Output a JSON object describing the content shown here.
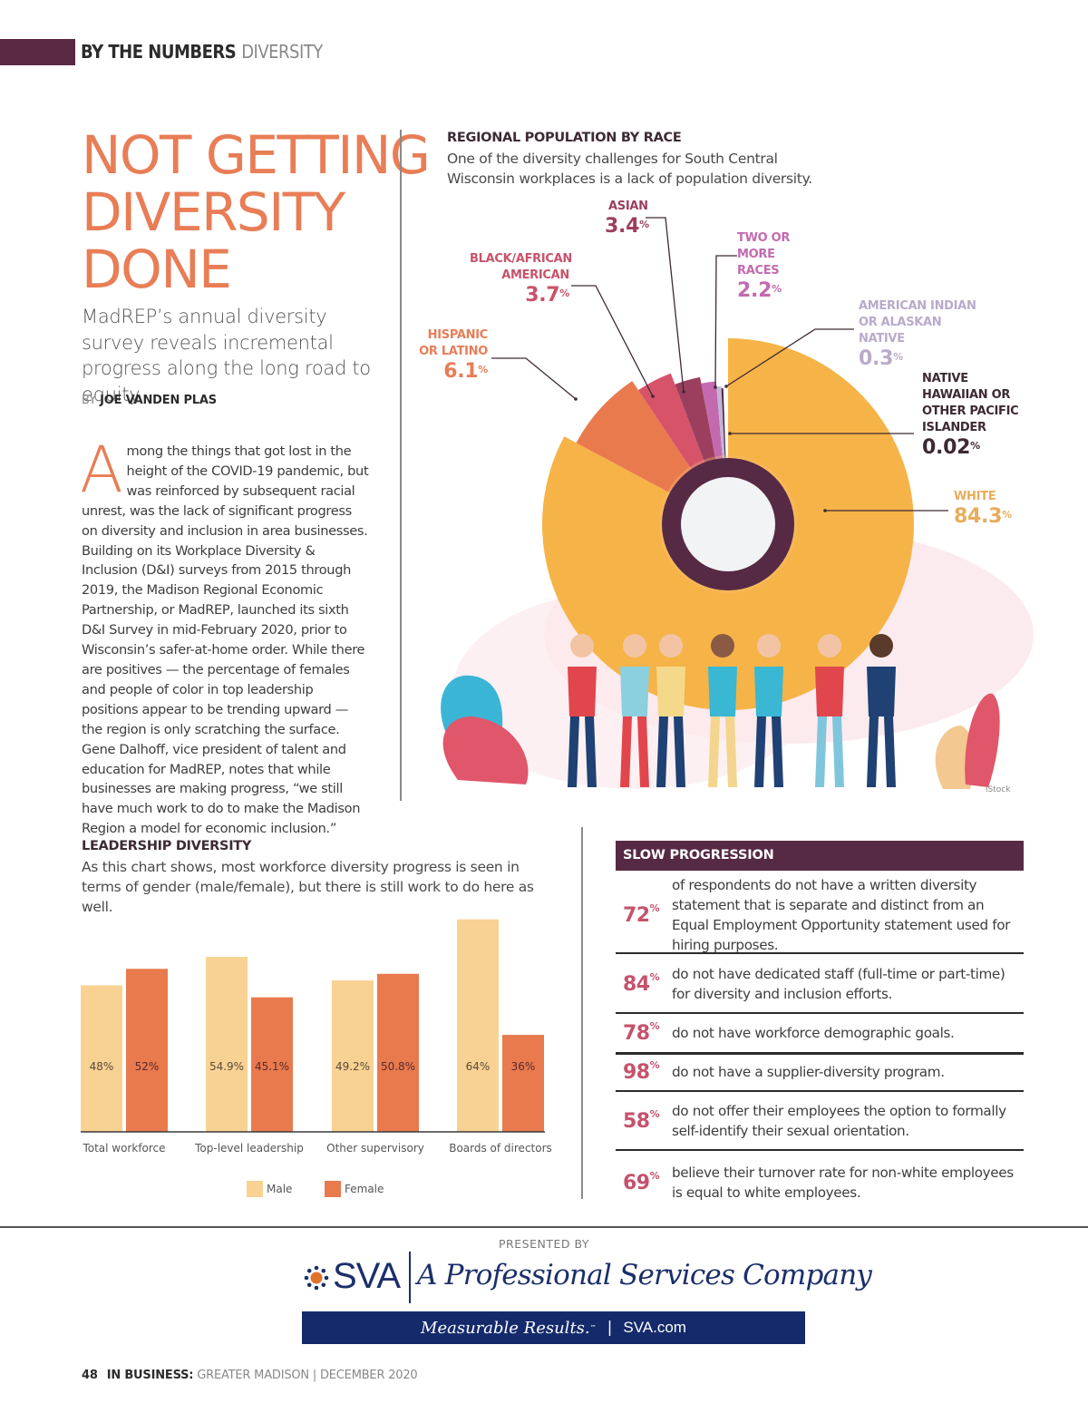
{
  "header": {
    "section": "BY THE NUMBERS",
    "topic": "DIVERSITY",
    "accent_color": "#5a2a45"
  },
  "article": {
    "title_lines": [
      "NOT GETTING",
      "DIVERSITY",
      "DONE"
    ],
    "dek": "MadREP’s annual diversity survey reveals incremental progress along the long road to equity.",
    "byline_prefix": "BY",
    "author": "JOE VANDEN PLAS",
    "drop_cap": "A",
    "body": "mong the things that got lost in the height of the COVID-19 pandemic, but was reinforced by subsequent racial unrest, was the lack of significant progress on diversity and inclusion in area businesses. Building on its Workplace Diversity & Inclusion (D&I) surveys from 2015 through 2019, the Madison Regional Economic Partnership, or MadREP, launched its sixth D&I Survey in mid-February 2020, prior to Wisconsin’s safer-at-home order. While there are positives — the percentage of females and people of color in top leadership positions appear to be trending upward — the region is only scratching the surface. Gene Dalhoff, vice president of talent and education for MadREP, notes that while businesses are making progress, “we still have much work to do to make the Madison Region a model for economic inclusion.”",
    "title_color": "#e87d56"
  },
  "chart_data": [
    {
      "type": "pie",
      "title": "REGIONAL POPULATION BY RACE",
      "subtitle": "One of the diversity challenges for South Central Wisconsin workplaces is a lack of population diversity.",
      "categories": [
        "White",
        "Hispanic or Latino",
        "Black/African American",
        "Asian",
        "Two or More Races",
        "American Indian or Alaskan Native",
        "Native Hawaiian or Other Pacific Islander"
      ],
      "labels": [
        "WHITE",
        "HISPANIC OR LATINO",
        "BLACK/AFRICAN AMERICAN",
        "ASIAN",
        "TWO OR MORE RACES",
        "AMERICAN INDIAN OR ALASKAN NATIVE",
        "NATIVE HAWAIIAN OR OTHER PACIFIC ISLANDER"
      ],
      "values": [
        84.3,
        6.1,
        3.7,
        3.4,
        2.2,
        0.3,
        0.02
      ],
      "value_labels": [
        "84.3",
        "6.1",
        "3.7",
        "3.4",
        "2.2",
        "0.3",
        "0.02"
      ],
      "colors": [
        "#f6b347",
        "#e87a4e",
        "#d6536a",
        "#9c3f5e",
        "#c36aaf",
        "#c3b3d8",
        "#4a2a3a"
      ],
      "label_colors": [
        "#e8ac5a",
        "#e87d56",
        "#c8536a",
        "#9c3f5e",
        "#c36aaf",
        "#b9aacb",
        "#3d2a34"
      ],
      "unit": "%",
      "credit": "iStock"
    },
    {
      "type": "bar",
      "title": "LEADERSHIP DIVERSITY",
      "subtitle": "As this chart shows, most workforce diversity progress is seen in terms of gender (male/female), but there is still work to do here as well.",
      "categories": [
        "Total workforce",
        "Top-level leadership",
        "Other supervisory",
        "Boards of directors"
      ],
      "series": [
        {
          "name": "Male",
          "values": [
            48,
            54.9,
            49.2,
            64
          ],
          "labels": [
            "48%",
            "54.9%",
            "49.2%",
            "64%"
          ],
          "color": "#f8d293"
        },
        {
          "name": "Female",
          "values": [
            52,
            45.1,
            50.8,
            36
          ],
          "labels": [
            "52%",
            "45.1%",
            "50.8%",
            "36%"
          ],
          "color": "#e87a4e"
        }
      ],
      "xlabel": "",
      "ylabel": "",
      "legend": "bottom",
      "grid": false
    }
  ],
  "slow_progression": {
    "title": "SLOW PROGRESSION",
    "items": [
      {
        "value": "72",
        "text": "of respondents do not have a written diversity statement that is separate and distinct from an Equal Employment Opportunity statement used for hiring purposes."
      },
      {
        "value": "84",
        "text": "do not have dedicated staff (full-time or part-time) for diversity and inclusion efforts."
      },
      {
        "value": "78",
        "text": "do not have workforce demographic goals."
      },
      {
        "value": "98",
        "text": "do not have a supplier-diversity program."
      },
      {
        "value": "58",
        "text": "do not offer their employees the option to formally self-identify their sexual orientation."
      },
      {
        "value": "69",
        "text": "believe their turnover rate for non-white employees is equal to white employees."
      }
    ],
    "pct_symbol": "%",
    "header_color": "#562a45",
    "number_color": "#c5536c"
  },
  "sponsor": {
    "presented_by": "PRESENTED BY",
    "brand": "SVA",
    "tagline": "A Professional Services Company",
    "slogan": "Measurable Results.",
    "trademark": "™",
    "separator": "|",
    "url": "SVA.com",
    "brand_color": "#1b2f6b"
  },
  "footer": {
    "page_number": "48",
    "publication": "IN BUSINESS:",
    "edition": "GREATER MADISON | DECEMBER 2020"
  }
}
